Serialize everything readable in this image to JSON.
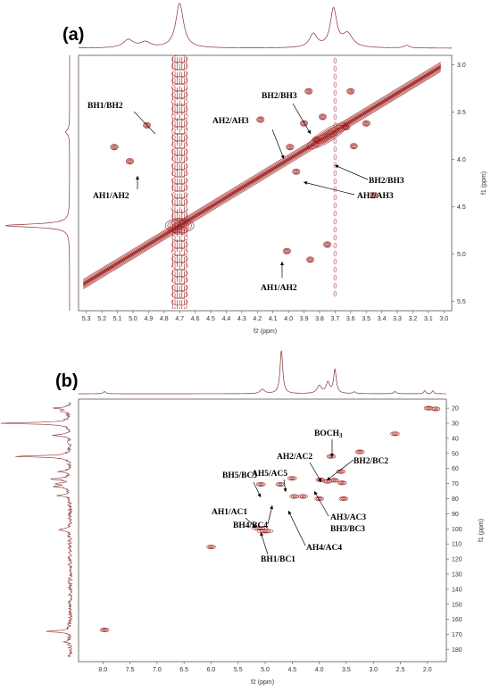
{
  "chart_data": [
    {
      "type": "scatter",
      "panel_label": "(a)",
      "xlabel": "f2 (ppm)",
      "ylabel": "f1 (ppm)",
      "xlim": [
        5.35,
        2.95
      ],
      "ylim": [
        2.9,
        5.6
      ],
      "x_ticks": [
        5.3,
        5.2,
        5.1,
        5.0,
        4.9,
        4.8,
        4.7,
        4.6,
        4.5,
        4.4,
        4.3,
        4.2,
        4.1,
        4.0,
        3.9,
        3.8,
        3.7,
        3.6,
        3.5,
        3.4,
        3.3,
        3.2,
        3.1,
        3.0
      ],
      "y_ticks": [
        3.0,
        3.5,
        4.0,
        4.5,
        5.0,
        5.5
      ],
      "diagonal": [
        [
          5.32,
          5.32
        ],
        [
          3.02,
          3.02
        ]
      ],
      "solvent_stripe_x": 4.7,
      "minor_stripe_x": 3.7,
      "peaks": [
        {
          "x": 4.91,
          "y": 3.64
        },
        {
          "x": 5.12,
          "y": 3.87
        },
        {
          "x": 5.02,
          "y": 4.02
        },
        {
          "x": 4.01,
          "y": 4.97
        },
        {
          "x": 3.86,
          "y": 5.06
        },
        {
          "x": 3.9,
          "y": 3.62
        },
        {
          "x": 3.78,
          "y": 3.55
        },
        {
          "x": 3.63,
          "y": 3.66
        },
        {
          "x": 3.58,
          "y": 3.86
        },
        {
          "x": 3.99,
          "y": 3.87
        },
        {
          "x": 3.95,
          "y": 4.13
        },
        {
          "x": 3.82,
          "y": 3.79
        },
        {
          "x": 3.87,
          "y": 3.28
        },
        {
          "x": 3.6,
          "y": 3.28
        },
        {
          "x": 3.5,
          "y": 3.62
        },
        {
          "x": 3.45,
          "y": 4.38
        },
        {
          "x": 3.75,
          "y": 4.9
        },
        {
          "x": 4.18,
          "y": 3.58
        }
      ],
      "annotations": [
        {
          "text": "BH1/BH2",
          "x": 4.91,
          "y": 3.64
        },
        {
          "text": "AH1/AH2",
          "x": 5.02,
          "y": 4.02
        },
        {
          "text": "BH2/BH3",
          "x": 3.9,
          "y": 3.62
        },
        {
          "text": "AH2/AH3",
          "x": 3.98,
          "y": 3.86
        },
        {
          "text": "BH2/BH3",
          "x": 3.63,
          "y": 3.88
        },
        {
          "text": "AH2/AH3",
          "x": 3.95,
          "y": 4.13
        },
        {
          "text": "AH1/AH2",
          "x": 4.01,
          "y": 4.97
        }
      ],
      "top_projection_peaks": [
        {
          "x": 4.7,
          "h": 1.0,
          "w": 0.03
        },
        {
          "x": 3.71,
          "h": 0.85,
          "w": 0.025
        },
        {
          "x": 3.84,
          "h": 0.3,
          "w": 0.03
        },
        {
          "x": 5.03,
          "h": 0.18,
          "w": 0.04
        },
        {
          "x": 4.92,
          "h": 0.12,
          "w": 0.04
        },
        {
          "x": 3.62,
          "h": 0.3,
          "w": 0.04
        },
        {
          "x": 3.24,
          "h": 0.06,
          "w": 0.02
        }
      ],
      "left_projection_peaks": [
        {
          "y": 4.7,
          "h": 1.0,
          "w": 0.02
        },
        {
          "y": 3.71,
          "h": 0.06,
          "w": 0.03
        }
      ]
    },
    {
      "type": "scatter",
      "panel_label": "(b)",
      "xlabel": "f2 (ppm)",
      "ylabel": "f1 (ppm)",
      "xlim": [
        8.45,
        1.65
      ],
      "ylim": [
        14,
        188
      ],
      "x_ticks": [
        8.0,
        7.5,
        7.0,
        6.5,
        6.0,
        5.5,
        5.0,
        4.5,
        4.0,
        3.5,
        3.0,
        2.5,
        2.0
      ],
      "y_ticks": [
        20,
        30,
        40,
        50,
        60,
        70,
        80,
        90,
        100,
        110,
        120,
        130,
        140,
        150,
        160,
        170,
        180
      ],
      "peaks": [
        {
          "x": 5.08,
          "y": 70.5
        },
        {
          "x": 4.72,
          "y": 70.5
        },
        {
          "x": 4.5,
          "y": 66.5
        },
        {
          "x": 4.3,
          "y": 78.5
        },
        {
          "x": 4.46,
          "y": 78.5
        },
        {
          "x": 5.1,
          "y": 99.5
        },
        {
          "x": 5.0,
          "y": 101.5
        },
        {
          "x": 3.98,
          "y": 67.5
        },
        {
          "x": 3.85,
          "y": 68.5
        },
        {
          "x": 3.72,
          "y": 67.8
        },
        {
          "x": 3.58,
          "y": 69.5
        },
        {
          "x": 3.78,
          "y": 52
        },
        {
          "x": 3.25,
          "y": 49
        },
        {
          "x": 2.6,
          "y": 37
        },
        {
          "x": 3.6,
          "y": 62
        },
        {
          "x": 3.55,
          "y": 80
        },
        {
          "x": 4.0,
          "y": 80
        },
        {
          "x": 6.0,
          "y": 112
        },
        {
          "x": 7.97,
          "y": 167
        },
        {
          "x": 1.98,
          "y": 20
        },
        {
          "x": 1.85,
          "y": 20.5
        }
      ],
      "annotations": [
        {
          "text": "BOCH",
          "sub": "3",
          "x": 3.78,
          "y": 52
        },
        {
          "text": "BH5/BC5",
          "x": 5.08,
          "y": 70.5
        },
        {
          "text": "AH2/AC2",
          "x": 3.98,
          "y": 67.5
        },
        {
          "text": "BH2/BC2",
          "x": 3.72,
          "y": 67.8
        },
        {
          "text": "AH5/AC5",
          "x": 4.72,
          "y": 70.5
        },
        {
          "text": "AH3/AC3",
          "x": 3.85,
          "y": 68.5
        },
        {
          "text": "BH3/BC3",
          "x": null,
          "y": null
        },
        {
          "text": "AH1/AC1",
          "x": 5.0,
          "y": 101.5
        },
        {
          "text": "BH4/BC4",
          "x": 4.46,
          "y": 78.5
        },
        {
          "text": "AH4/AC4",
          "x": 4.3,
          "y": 78.5
        },
        {
          "text": "BH1/BC1",
          "x": 5.1,
          "y": 99.5
        }
      ],
      "top_projection_peaks": [
        {
          "x": 4.7,
          "h": 1.0,
          "w": 0.03
        },
        {
          "x": 3.71,
          "h": 0.55,
          "w": 0.03
        },
        {
          "x": 3.84,
          "h": 0.25,
          "w": 0.04
        },
        {
          "x": 4.0,
          "h": 0.18,
          "w": 0.05
        },
        {
          "x": 5.05,
          "h": 0.1,
          "w": 0.05
        },
        {
          "x": 7.97,
          "h": 0.05,
          "w": 0.03
        },
        {
          "x": 2.05,
          "h": 0.07,
          "w": 0.02
        },
        {
          "x": 1.9,
          "h": 0.07,
          "w": 0.02
        },
        {
          "x": 3.35,
          "h": 0.04,
          "w": 0.03
        },
        {
          "x": 2.6,
          "h": 0.05,
          "w": 0.03
        }
      ],
      "left_projection_peaks": [
        {
          "y": 20,
          "h": 0.22
        },
        {
          "y": 22,
          "h": 0.14
        },
        {
          "y": 30,
          "h": 1.0
        },
        {
          "y": 38,
          "h": 0.25
        },
        {
          "y": 52,
          "h": 0.8
        },
        {
          "y": 62,
          "h": 0.18
        },
        {
          "y": 67,
          "h": 0.28
        },
        {
          "y": 70,
          "h": 0.2
        },
        {
          "y": 72,
          "h": 0.22
        },
        {
          "y": 78,
          "h": 0.16
        },
        {
          "y": 100,
          "h": 0.1
        },
        {
          "y": 101,
          "h": 0.12
        },
        {
          "y": 168,
          "h": 0.35
        },
        {
          "y": 175,
          "h": 0.08
        }
      ]
    }
  ]
}
